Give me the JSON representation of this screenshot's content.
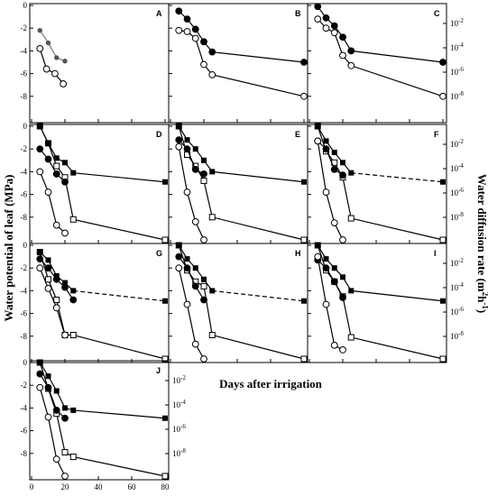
{
  "figure": {
    "ylabel_left": "Water potential of leaf (MPa)",
    "ylabel_right": "Water diffusion rate (m²h⁻¹)",
    "xlabel": "Days after irrigation",
    "ylabel_right_parts": {
      "main": "Water diffusion rate (m",
      "sup1": "2",
      "mid": "h",
      "sup2": "-1",
      "end": ")"
    }
  },
  "chart_data": [
    {
      "type": "line",
      "panel": "A",
      "xlim": [
        0,
        80
      ],
      "ylim": [
        -10,
        0
      ],
      "yticks": [
        "0",
        "-2",
        "-4",
        "-6",
        "-8"
      ],
      "xticks": [],
      "right_log_ticks": [],
      "series": [
        {
          "marker": "gray-dot",
          "line": "gray",
          "x": [
            5,
            10,
            15,
            20
          ],
          "y": [
            -2.2,
            -3.3,
            -4.6,
            -4.9
          ]
        },
        {
          "marker": "open-circle",
          "line": "solid",
          "x": [
            5,
            9,
            14,
            19
          ],
          "y": [
            -3.8,
            -5.6,
            -6.0,
            -6.9
          ]
        }
      ]
    },
    {
      "type": "line",
      "panel": "B",
      "xlim": [
        0,
        80
      ],
      "ylim": [
        -10,
        0
      ],
      "yticks": [],
      "xticks": [],
      "right_log_ticks": [],
      "series": [
        {
          "marker": "filled-circle",
          "line": "solid",
          "x": [
            5,
            10,
            15,
            20,
            25,
            80
          ],
          "y": [
            -0.5,
            -1.2,
            -2.1,
            -3.2,
            -4.1,
            -5.0
          ]
        },
        {
          "marker": "open-circle",
          "line": "solid",
          "x": [
            5,
            10,
            15,
            20,
            25,
            80
          ],
          "y": [
            -2.2,
            -2.3,
            -2.9,
            -5.2,
            -6.1,
            -8.0
          ]
        }
      ]
    },
    {
      "type": "line",
      "panel": "C",
      "xlim": [
        0,
        80
      ],
      "ylim": [
        -10,
        0
      ],
      "yticks": [],
      "xticks": [],
      "right_log_ticks": [
        "10-2",
        "10-4",
        "10-6",
        "10-8"
      ],
      "series": [
        {
          "marker": "filled-circle",
          "line": "solid",
          "x": [
            5,
            10,
            15,
            20,
            25,
            80
          ],
          "y": [
            -0.1,
            -1.1,
            -1.8,
            -2.8,
            -4.0,
            -5.0
          ]
        },
        {
          "marker": "open-circle",
          "line": "solid",
          "x": [
            5,
            10,
            15,
            20,
            25,
            80
          ],
          "y": [
            -1.2,
            -2.0,
            -2.4,
            -4.4,
            -5.3,
            -8.0
          ]
        }
      ]
    },
    {
      "type": "line",
      "panel": "D",
      "xlim": [
        0,
        80
      ],
      "ylim": [
        -10,
        0
      ],
      "yticks": [
        "0",
        "-2",
        "-4",
        "-6",
        "-8"
      ],
      "xticks": [],
      "right_log_ticks": [],
      "series": [
        {
          "marker": "open-square",
          "line": "solid",
          "x": [
            5,
            10,
            15,
            20,
            25,
            80
          ],
          "y": [
            0,
            -1.5,
            -3.5,
            -4.5,
            -8.2,
            -10.0
          ]
        },
        {
          "marker": "filled-square",
          "line": "solid",
          "x": [
            5,
            10,
            15,
            20,
            25,
            80
          ],
          "y": [
            0,
            -1.5,
            -2.8,
            -3.2,
            -4.1,
            -4.9
          ]
        },
        {
          "marker": "filled-circle",
          "line": "solid",
          "x": [
            5,
            10,
            15,
            20
          ],
          "y": [
            -2.0,
            -2.9,
            -4.2,
            -4.9
          ]
        },
        {
          "marker": "open-circle",
          "line": "solid",
          "x": [
            5,
            10,
            15,
            20
          ],
          "y": [
            -4.0,
            -5.8,
            -8.7,
            -9.4
          ]
        }
      ]
    },
    {
      "type": "line",
      "panel": "E",
      "xlim": [
        0,
        80
      ],
      "ylim": [
        -10,
        0
      ],
      "yticks": [],
      "xticks": [],
      "right_log_ticks": [],
      "series": [
        {
          "marker": "open-square",
          "line": "solid",
          "x": [
            5,
            10,
            15,
            20,
            25,
            80
          ],
          "y": [
            0,
            -2.5,
            -3.5,
            -4.8,
            -8.0,
            -10.0
          ]
        },
        {
          "marker": "filled-square",
          "line": "solid",
          "x": [
            5,
            10,
            15,
            20,
            25,
            80
          ],
          "y": [
            0,
            -1.2,
            -2.0,
            -3.0,
            -4.0,
            -4.9
          ]
        },
        {
          "marker": "filled-circle",
          "line": "solid",
          "x": [
            5,
            10,
            15,
            20
          ],
          "y": [
            -1.2,
            -2.0,
            -3.8,
            -4.2
          ]
        },
        {
          "marker": "open-circle",
          "line": "solid",
          "x": [
            5,
            10,
            15,
            20
          ],
          "y": [
            -1.8,
            -5.8,
            -8.4,
            -10.0
          ]
        }
      ]
    },
    {
      "type": "line",
      "panel": "F",
      "xlim": [
        0,
        80
      ],
      "ylim": [
        -10,
        0
      ],
      "yticks": [],
      "xticks": [],
      "right_log_ticks": [
        "10-2",
        "10-4",
        "10-6",
        "10-8"
      ],
      "series": [
        {
          "marker": "open-square",
          "line": "solid",
          "x": [
            5,
            10,
            15,
            20,
            25,
            80
          ],
          "y": [
            0,
            -2.2,
            -3.2,
            -4.5,
            -8.1,
            -10.0
          ]
        },
        {
          "marker": "filled-square",
          "line": "dashed",
          "x": [
            5,
            10,
            15,
            20,
            25,
            80
          ],
          "y": [
            0,
            -1.3,
            -2.3,
            -3.2,
            -4.1,
            -4.9
          ]
        },
        {
          "marker": "filled-circle",
          "line": "solid",
          "x": [
            5,
            10,
            15,
            20
          ],
          "y": [
            -1.3,
            -2.0,
            -3.8,
            -4.3
          ]
        },
        {
          "marker": "open-circle",
          "line": "solid",
          "x": [
            5,
            10,
            15,
            20
          ],
          "y": [
            -1.3,
            -5.8,
            -8.5,
            -10.0
          ]
        }
      ]
    },
    {
      "type": "line",
      "panel": "G",
      "xlim": [
        0,
        80
      ],
      "ylim": [
        -10,
        0
      ],
      "yticks": [
        "0",
        "-2",
        "-4",
        "-6",
        "-8"
      ],
      "xticks": [],
      "right_log_ticks": [],
      "series": [
        {
          "marker": "open-square",
          "line": "solid",
          "x": [
            5,
            10,
            15,
            20,
            25,
            80
          ],
          "y": [
            -0.6,
            -3.0,
            -4.8,
            -7.9,
            -7.9,
            -10.0
          ]
        },
        {
          "marker": "filled-square",
          "line": "dashed",
          "x": [
            5,
            10,
            15,
            20,
            25,
            80
          ],
          "y": [
            -0.6,
            -1.3,
            -2.7,
            -3.3,
            -4.0,
            -4.9
          ]
        },
        {
          "marker": "filled-circle",
          "line": "solid",
          "x": [
            5,
            10,
            15,
            20,
            25
          ],
          "y": [
            -1.2,
            -2.0,
            -3.0,
            -3.7,
            -4.8
          ]
        },
        {
          "marker": "open-circle",
          "line": "solid",
          "x": [
            5,
            10,
            15,
            20
          ],
          "y": [
            -2.0,
            -3.8,
            -5.5,
            -7.9
          ]
        }
      ]
    },
    {
      "type": "line",
      "panel": "H",
      "xlim": [
        0,
        80
      ],
      "ylim": [
        -10,
        0
      ],
      "yticks": [],
      "xticks": [],
      "right_log_ticks": [],
      "series": [
        {
          "marker": "open-square",
          "line": "solid",
          "x": [
            5,
            10,
            15,
            20,
            25,
            80
          ],
          "y": [
            0,
            -2.2,
            -3.2,
            -3.6,
            -7.9,
            -10.0
          ]
        },
        {
          "marker": "filled-square",
          "line": "dashed",
          "x": [
            5,
            10,
            15,
            20,
            25,
            80
          ],
          "y": [
            0,
            -1.2,
            -2.0,
            -3.0,
            -4.0,
            -4.9
          ]
        },
        {
          "marker": "filled-circle",
          "line": "solid",
          "x": [
            5,
            10,
            15,
            20
          ],
          "y": [
            -1.0,
            -2.0,
            -3.6,
            -4.8
          ]
        },
        {
          "marker": "open-circle",
          "line": "solid",
          "x": [
            5,
            10,
            15,
            20
          ],
          "y": [
            -2.0,
            -5.2,
            -8.7,
            -10.0
          ]
        }
      ]
    },
    {
      "type": "line",
      "panel": "I",
      "xlim": [
        0,
        80
      ],
      "ylim": [
        -10,
        0
      ],
      "yticks": [],
      "xticks": [],
      "right_log_ticks": [
        "10-2",
        "10-4",
        "10-6",
        "10-8"
      ],
      "series": [
        {
          "marker": "open-square",
          "line": "solid",
          "x": [
            5,
            10,
            15,
            20,
            25,
            80
          ],
          "y": [
            0,
            -2.2,
            -3.2,
            -4.5,
            -8.1,
            -10.0
          ]
        },
        {
          "marker": "filled-square",
          "line": "solid",
          "x": [
            5,
            10,
            15,
            20,
            25,
            80
          ],
          "y": [
            0,
            -1.2,
            -2.0,
            -2.8,
            -4.0,
            -4.9
          ]
        },
        {
          "marker": "filled-circle",
          "line": "solid",
          "x": [
            5,
            10,
            15,
            20
          ],
          "y": [
            -1.3,
            -2.0,
            -3.2,
            -4.6
          ]
        },
        {
          "marker": "open-circle",
          "line": "solid",
          "x": [
            5,
            10,
            15,
            20
          ],
          "y": [
            -1.0,
            -5.2,
            -8.8,
            -9.2
          ]
        }
      ]
    },
    {
      "type": "line",
      "panel": "J",
      "xlim": [
        0,
        80
      ],
      "ylim": [
        -10,
        0
      ],
      "yticks": [
        "0",
        "-2",
        "-4",
        "-6",
        "-8"
      ],
      "xticks": [
        "0",
        "20",
        "40",
        "60",
        "80"
      ],
      "right_log_ticks": [
        "10-2",
        "10-4",
        "10-6",
        "10-8"
      ],
      "series": [
        {
          "marker": "open-square",
          "line": "solid",
          "x": [
            5,
            10,
            15,
            20,
            25,
            80
          ],
          "y": [
            0,
            -2.3,
            -4.5,
            -7.9,
            -8.3,
            -10.0
          ]
        },
        {
          "marker": "filled-square",
          "line": "solid",
          "x": [
            5,
            10,
            15,
            20,
            25,
            80
          ],
          "y": [
            0,
            -1.2,
            -2.5,
            -4.0,
            -4.2,
            -4.9
          ]
        },
        {
          "marker": "filled-circle",
          "line": "solid",
          "x": [
            5,
            10,
            15,
            20
          ],
          "y": [
            -1.0,
            -2.2,
            -4.2,
            -4.9
          ]
        },
        {
          "marker": "open-circle",
          "line": "solid",
          "x": [
            5,
            10,
            15,
            20
          ],
          "y": [
            -2.2,
            -4.8,
            -8.5,
            -10.0
          ]
        }
      ]
    }
  ]
}
